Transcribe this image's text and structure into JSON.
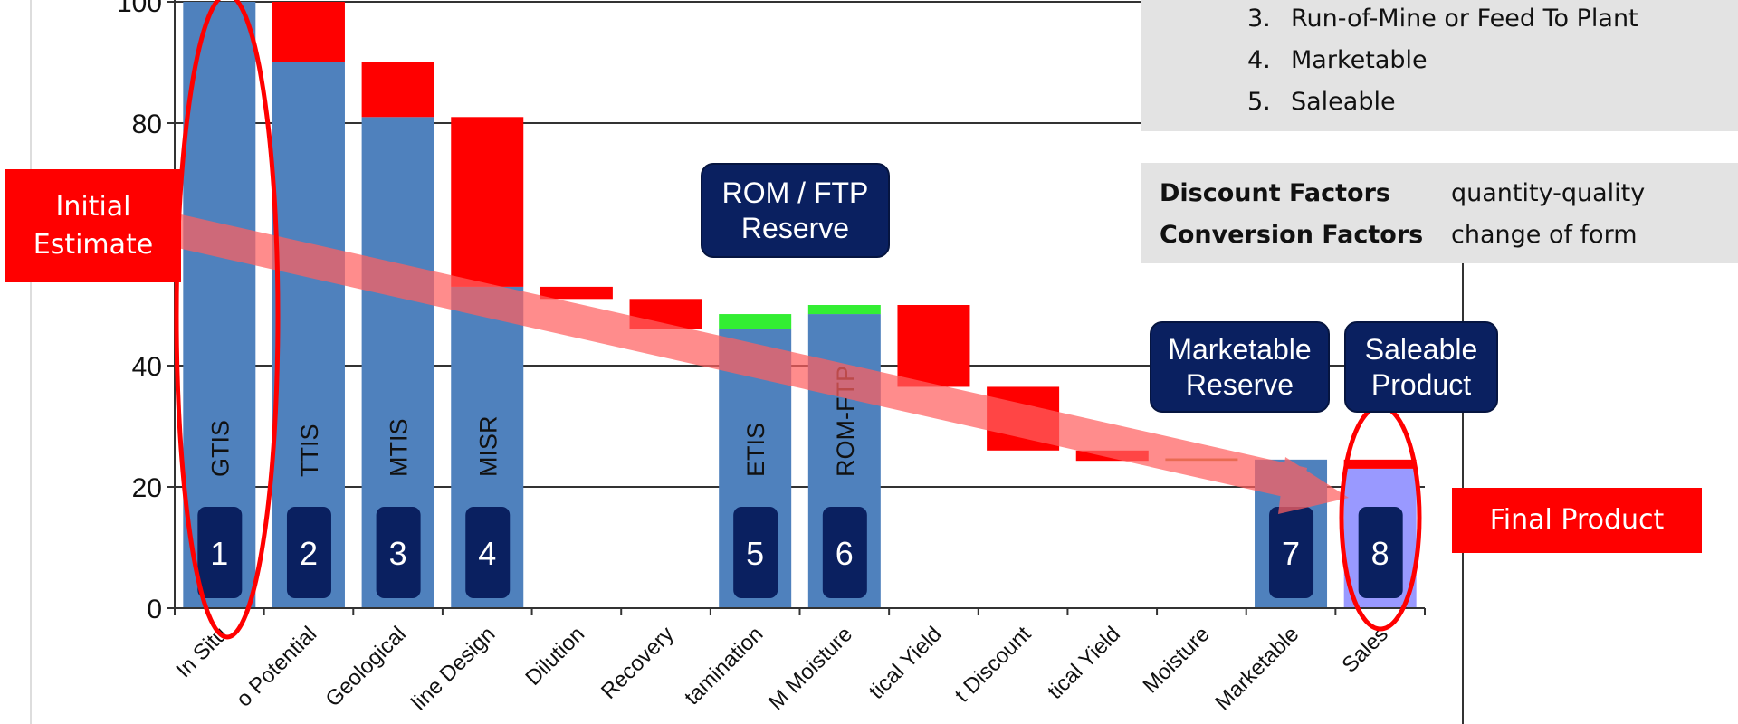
{
  "legend_list": {
    "items": [
      {
        "num": "3.",
        "text": "Run-of-Mine or Feed To Plant"
      },
      {
        "num": "4.",
        "text": "Marketable"
      },
      {
        "num": "5.",
        "text": "Saleable"
      }
    ]
  },
  "factors": [
    {
      "name": "Discount Factors",
      "desc": "quantity-quality"
    },
    {
      "name": "Conversion Factors",
      "desc": "change of form"
    }
  ],
  "callouts": {
    "initial_estimate": "Initial Estimate",
    "final_product": "Final Product",
    "rom_ftp_reserve": "ROM / FTP Reserve",
    "marketable_reserve": "Marketable Reserve",
    "saleable_product": "Saleable Product"
  },
  "colors": {
    "base": "#4f81bd",
    "loss": "#ff0000",
    "gain": "#33ee33",
    "moisture": "#b08a30",
    "sales": "#9999ff",
    "badge": "#0a2060",
    "arrow": "#ff6060"
  },
  "chart_data": {
    "type": "bar",
    "subtype": "waterfall",
    "ylim": [
      0,
      100
    ],
    "yticks": [
      "0",
      "20",
      "40",
      "80",
      "100"
    ],
    "grid": true,
    "categories": [
      "In Situ",
      "o Potential",
      "Geological",
      "line Design",
      "Dilution",
      "Recovery",
      "tamination",
      "M Moisture",
      "tical Yield",
      "t Discount",
      "tical Yield",
      "Moisture",
      "Marketable",
      "Sales"
    ],
    "bars": [
      {
        "base": 100,
        "badge": "1",
        "code": "GTIS"
      },
      {
        "base": 90,
        "loss": [
          90,
          100
        ],
        "badge": "2",
        "code": "TTIS"
      },
      {
        "base": 81,
        "loss": [
          81,
          90
        ],
        "badge": "3",
        "code": "MTIS"
      },
      {
        "base": 53,
        "loss": [
          53,
          81
        ],
        "badge": "4",
        "code": "MISR"
      },
      {
        "loss": [
          51,
          53
        ]
      },
      {
        "loss": [
          46,
          51
        ]
      },
      {
        "base": 46,
        "gain": [
          46,
          48.5
        ],
        "badge": "5",
        "code": "ETIS"
      },
      {
        "base": 48.5,
        "gain": [
          48.5,
          50
        ],
        "badge": "6",
        "code": "ROM-FTP"
      },
      {
        "loss": [
          36.5,
          50
        ]
      },
      {
        "loss": [
          26,
          36.5
        ]
      },
      {
        "loss": [
          24.3,
          26
        ]
      },
      {
        "moisture": [
          24.3,
          24.7
        ]
      },
      {
        "base": 24.5,
        "badge": "7"
      },
      {
        "sales": 23,
        "loss": [
          23,
          24.5
        ],
        "badge": "8"
      }
    ]
  }
}
